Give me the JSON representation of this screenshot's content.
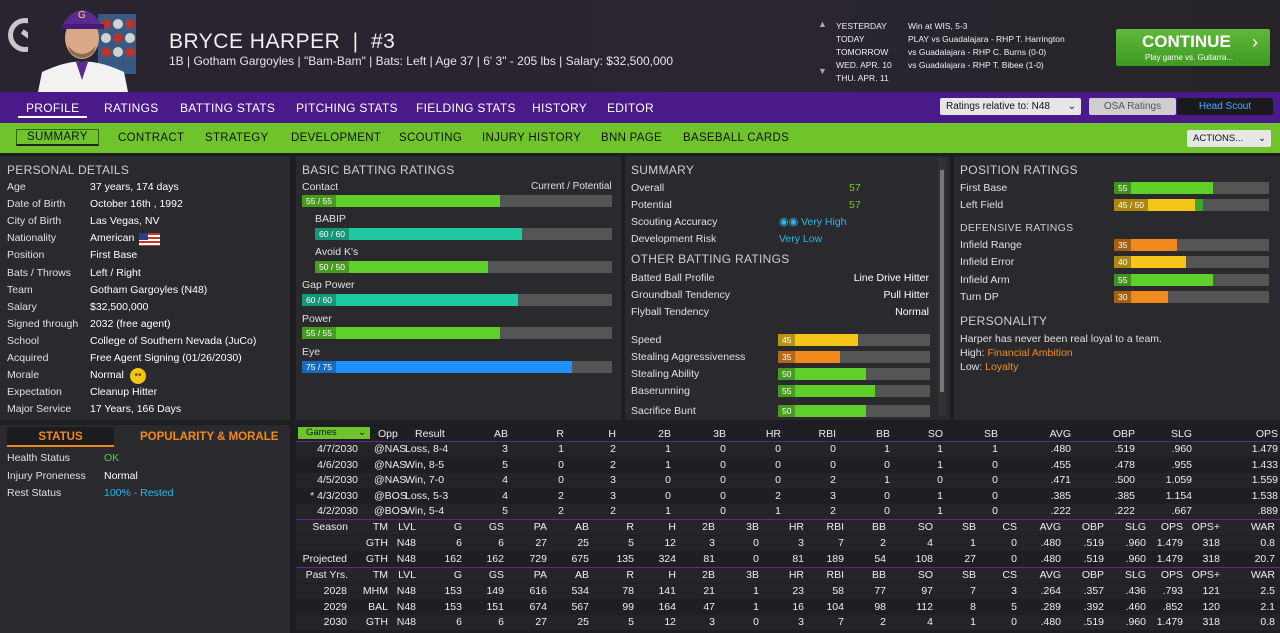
{
  "header": {
    "name": "BRYCE HARPER",
    "number": "#3",
    "sep": "|",
    "subtitle": "1B | Gotham Gargoyles  | \"Bam-Bam\" | Bats: Left  |  Age 37  |  6' 3\" - 205 lbs  |  Salary: $32,500,000"
  },
  "schedule": [
    {
      "day": "YESTERDAY",
      "text": "Win at WIS, 5-3"
    },
    {
      "day": "TODAY",
      "text": "PLAY vs Guadalajara - RHP T. Harrington"
    },
    {
      "day": "TOMORROW",
      "text": "vs Guadalajara - RHP C. Burns (0-0)"
    },
    {
      "day": "WED. APR. 10",
      "text": "vs Guadalajara - RHP T. Bibee (1-0)"
    },
    {
      "day": "THU. APR. 11",
      "text": ""
    }
  ],
  "continue": {
    "label": "CONTINUE",
    "sub": "Play game vs. Guitarra...",
    "chev": "›"
  },
  "nav1": [
    "PROFILE",
    "RATINGS",
    "BATTING STATS",
    "PITCHING STATS",
    "FIELDING STATS",
    "HISTORY",
    "EDITOR"
  ],
  "ratings_relative": "Ratings relative to: N48",
  "osa": "OSA Ratings",
  "headscout": "Head Scout",
  "nav2": [
    "SUMMARY",
    "CONTRACT",
    "STRATEGY",
    "DEVELOPMENT",
    "SCOUTING",
    "INJURY HISTORY",
    "BNN PAGE",
    "BASEBALL CARDS"
  ],
  "actions": "ACTIONS...",
  "personal": {
    "title": "PERSONAL DETAILS",
    "rows": [
      [
        "Age",
        "37 years, 174 days"
      ],
      [
        "Date of Birth",
        "October 16th , 1992"
      ],
      [
        "City of Birth",
        "Las Vegas, NV"
      ],
      [
        "Nationality",
        "American"
      ],
      [
        "Position",
        "First Base"
      ],
      [
        "Bats / Throws",
        "Left / Right"
      ],
      [
        "Team",
        "Gotham Gargoyles (N48)"
      ],
      [
        "Salary",
        "$32,500,000"
      ],
      [
        "Signed through",
        "2032 (free agent)"
      ],
      [
        "School",
        "College of Southern Nevada (JuCo)"
      ],
      [
        "Acquired",
        "Free Agent Signing (01/26/2030)"
      ],
      [
        "Morale",
        "Normal"
      ],
      [
        "Expectation",
        "Cleanup Hitter"
      ],
      [
        "Major Service",
        "17 Years, 166 Days"
      ]
    ]
  },
  "status": {
    "tab1": "STATUS",
    "tab2": "POPULARITY & MORALE",
    "rows": [
      [
        "Health Status",
        "OK"
      ],
      [
        "Injury Proneness",
        "Normal"
      ],
      [
        "Rest Status",
        "100% - Rested"
      ]
    ]
  },
  "batting": {
    "title": "BASIC BATTING RATINGS",
    "cp": "Current / Potential",
    "items": [
      {
        "label": "Contact",
        "badge": "55 / 55",
        "value": 55,
        "color": "#5fcf2a"
      },
      {
        "label": "BABIP",
        "badge": "60 / 60",
        "value": 60,
        "color": "#1ec8a0"
      },
      {
        "label": "Avoid K's",
        "badge": "50 / 50",
        "value": 50,
        "color": "#5fcf2a"
      },
      {
        "label": "Gap Power",
        "badge": "60 / 60",
        "value": 60,
        "color": "#1ec8a0"
      },
      {
        "label": "Power",
        "badge": "55 / 55",
        "value": 55,
        "color": "#5fcf2a"
      },
      {
        "label": "Eye",
        "badge": "75 / 75",
        "value": 75,
        "color": "#1e90ff"
      }
    ]
  },
  "summary": {
    "title": "SUMMARY",
    "rows": [
      [
        "Overall",
        "57"
      ],
      [
        "Potential",
        "57"
      ],
      [
        "Scouting Accuracy",
        "Very High"
      ],
      [
        "Development Risk",
        "Very Low"
      ]
    ],
    "other_title": "OTHER BATTING RATINGS",
    "other": [
      [
        "Batted Ball Profile",
        "Line Drive Hitter"
      ],
      [
        "Groundball Tendency",
        "Pull Hitter"
      ],
      [
        "Flyball Tendency",
        "Normal"
      ]
    ],
    "speed": [
      {
        "label": "Speed",
        "v": 45,
        "c": "#f5c518"
      },
      {
        "label": "Stealing Aggressiveness",
        "v": 35,
        "c": "#f08a1c"
      },
      {
        "label": "Stealing Ability",
        "v": 50,
        "c": "#5fcf2a"
      },
      {
        "label": "Baserunning",
        "v": 55,
        "c": "#5fcf2a"
      },
      {
        "label": "Sacrifice Bunt",
        "v": 50,
        "c": "#5fcf2a"
      }
    ]
  },
  "position": {
    "title": "POSITION RATINGS",
    "items": [
      {
        "label": "First Base",
        "badge": "55",
        "v": 55,
        "c": "#5fcf2a"
      },
      {
        "label": "Left Field",
        "badge": "45 / 50",
        "v": 45,
        "c": "#f5c518"
      }
    ],
    "def_title": "DEFENSIVE RATINGS",
    "def": [
      {
        "label": "Infield Range",
        "v": 35,
        "c": "#f08a1c"
      },
      {
        "label": "Infield Error",
        "v": 40,
        "c": "#f5c518"
      },
      {
        "label": "Infield Arm",
        "v": 55,
        "c": "#5fcf2a"
      },
      {
        "label": "Turn DP",
        "v": 30,
        "c": "#f08a1c"
      }
    ],
    "pers_title": "PERSONALITY",
    "pers_text": "Harper has never been real loyal to a team.",
    "high_label": "High:",
    "high": "Financial Ambition",
    "low_label": "Low:",
    "low": "Loyalty"
  },
  "games": {
    "select": "Games",
    "cols": [
      "Opp",
      "Result",
      "AB",
      "R",
      "H",
      "2B",
      "3B",
      "HR",
      "RBI",
      "BB",
      "SO",
      "SB",
      "AVG",
      "OBP",
      "SLG",
      "OPS"
    ],
    "rows": [
      [
        "4/7/2030",
        "@NAS",
        "Loss, 8-4",
        "3",
        "1",
        "2",
        "1",
        "0",
        "0",
        "0",
        "1",
        "1",
        "1",
        ".480",
        ".519",
        ".960",
        "1.479"
      ],
      [
        "4/6/2030",
        "@NAS",
        "Win, 8-5",
        "5",
        "0",
        "2",
        "1",
        "0",
        "0",
        "0",
        "0",
        "1",
        "0",
        ".455",
        ".478",
        ".955",
        "1.433"
      ],
      [
        "4/5/2030",
        "@NAS",
        "Win, 7-0",
        "4",
        "0",
        "3",
        "0",
        "0",
        "0",
        "2",
        "1",
        "0",
        "0",
        ".471",
        ".500",
        "1.059",
        "1.559"
      ],
      [
        "* 4/3/2030",
        "@BOS",
        "Loss, 5-3",
        "4",
        "2",
        "3",
        "0",
        "0",
        "2",
        "3",
        "0",
        "1",
        "0",
        ".385",
        ".385",
        "1.154",
        "1.538"
      ],
      [
        "4/2/2030",
        "@BOS",
        "Win, 5-4",
        "5",
        "2",
        "2",
        "1",
        "0",
        "1",
        "2",
        "0",
        "1",
        "0",
        ".222",
        ".222",
        ".667",
        ".889"
      ]
    ]
  },
  "season": {
    "cols": [
      "Season",
      "TM",
      "LVL",
      "G",
      "GS",
      "PA",
      "AB",
      "R",
      "H",
      "2B",
      "3B",
      "HR",
      "RBI",
      "BB",
      "SO",
      "SB",
      "CS",
      "AVG",
      "OBP",
      "SLG",
      "OPS",
      "OPS+",
      "WAR"
    ],
    "rows": [
      [
        "",
        "GTH",
        "N48",
        "6",
        "6",
        "27",
        "25",
        "5",
        "12",
        "3",
        "0",
        "3",
        "7",
        "2",
        "4",
        "1",
        "0",
        ".480",
        ".519",
        ".960",
        "1.479",
        "318",
        "0.8"
      ],
      [
        "Projected",
        "GTH",
        "N48",
        "162",
        "162",
        "729",
        "675",
        "135",
        "324",
        "81",
        "0",
        "81",
        "189",
        "54",
        "108",
        "27",
        "0",
        ".480",
        ".519",
        ".960",
        "1.479",
        "318",
        "20.7"
      ]
    ]
  },
  "past": {
    "cols": [
      "Past Yrs.",
      "TM",
      "LVL",
      "G",
      "GS",
      "PA",
      "AB",
      "R",
      "H",
      "2B",
      "3B",
      "HR",
      "RBI",
      "BB",
      "SO",
      "SB",
      "CS",
      "AVG",
      "OBP",
      "SLG",
      "OPS",
      "OPS+",
      "WAR"
    ],
    "rows": [
      [
        "2028",
        "MHM",
        "N48",
        "153",
        "149",
        "616",
        "534",
        "78",
        "141",
        "21",
        "1",
        "23",
        "58",
        "77",
        "97",
        "7",
        "3",
        ".264",
        ".357",
        ".436",
        ".793",
        "121",
        "2.5"
      ],
      [
        "2029",
        "BAL",
        "N48",
        "153",
        "151",
        "674",
        "567",
        "99",
        "164",
        "47",
        "1",
        "16",
        "104",
        "98",
        "112",
        "8",
        "5",
        ".289",
        ".392",
        ".460",
        ".852",
        "120",
        "2.1"
      ],
      [
        "2030",
        "GTH",
        "N48",
        "6",
        "6",
        "27",
        "25",
        "5",
        "12",
        "3",
        "0",
        "3",
        "7",
        "2",
        "4",
        "1",
        "0",
        ".480",
        ".519",
        ".960",
        "1.479",
        "318",
        "0.8"
      ]
    ]
  }
}
